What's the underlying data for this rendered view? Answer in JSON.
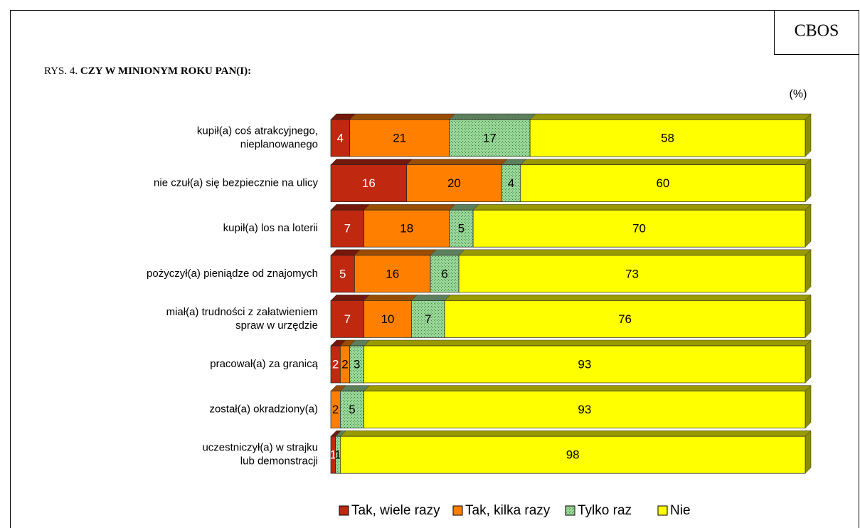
{
  "chart_data": {
    "type": "stacked_bar_horizontal",
    "brand": "CBOS",
    "figure_label": "RYS. 4.",
    "title": "CZY W MINIONYM ROKU PAN(I):",
    "unit_note": "(%)",
    "categories": [
      [
        "kupił(a) coś atrakcyjnego,",
        "nieplanowanego"
      ],
      [
        "nie czuł(a) się bezpiecznie na ulicy"
      ],
      [
        "kupił(a) los na loterii"
      ],
      [
        "pożyczył(a) pieniądze od znajomych"
      ],
      [
        "miał(a) trudności z załatwieniem",
        "spraw w urzędzie"
      ],
      [
        "pracował(a) za granicą"
      ],
      [
        "został(a) okradziony(a)"
      ],
      [
        "uczestniczył(a) w strajku",
        "lub demonstracji"
      ]
    ],
    "series": [
      {
        "name": "Tak, wiele razy",
        "color": "#c02810",
        "values": [
          4,
          16,
          7,
          5,
          7,
          2,
          0,
          1
        ]
      },
      {
        "name": "Tak, kilka razy",
        "color": "#ff8000",
        "values": [
          21,
          20,
          18,
          16,
          10,
          2,
          2,
          0
        ]
      },
      {
        "name": "Tylko raz",
        "color": "#99d699",
        "values": [
          17,
          4,
          5,
          6,
          7,
          3,
          5,
          1
        ]
      },
      {
        "name": "Nie",
        "color": "#ffff00",
        "values": [
          58,
          60,
          70,
          73,
          76,
          93,
          93,
          98
        ]
      }
    ],
    "xlim": [
      0,
      100
    ],
    "legend": "bottom"
  }
}
